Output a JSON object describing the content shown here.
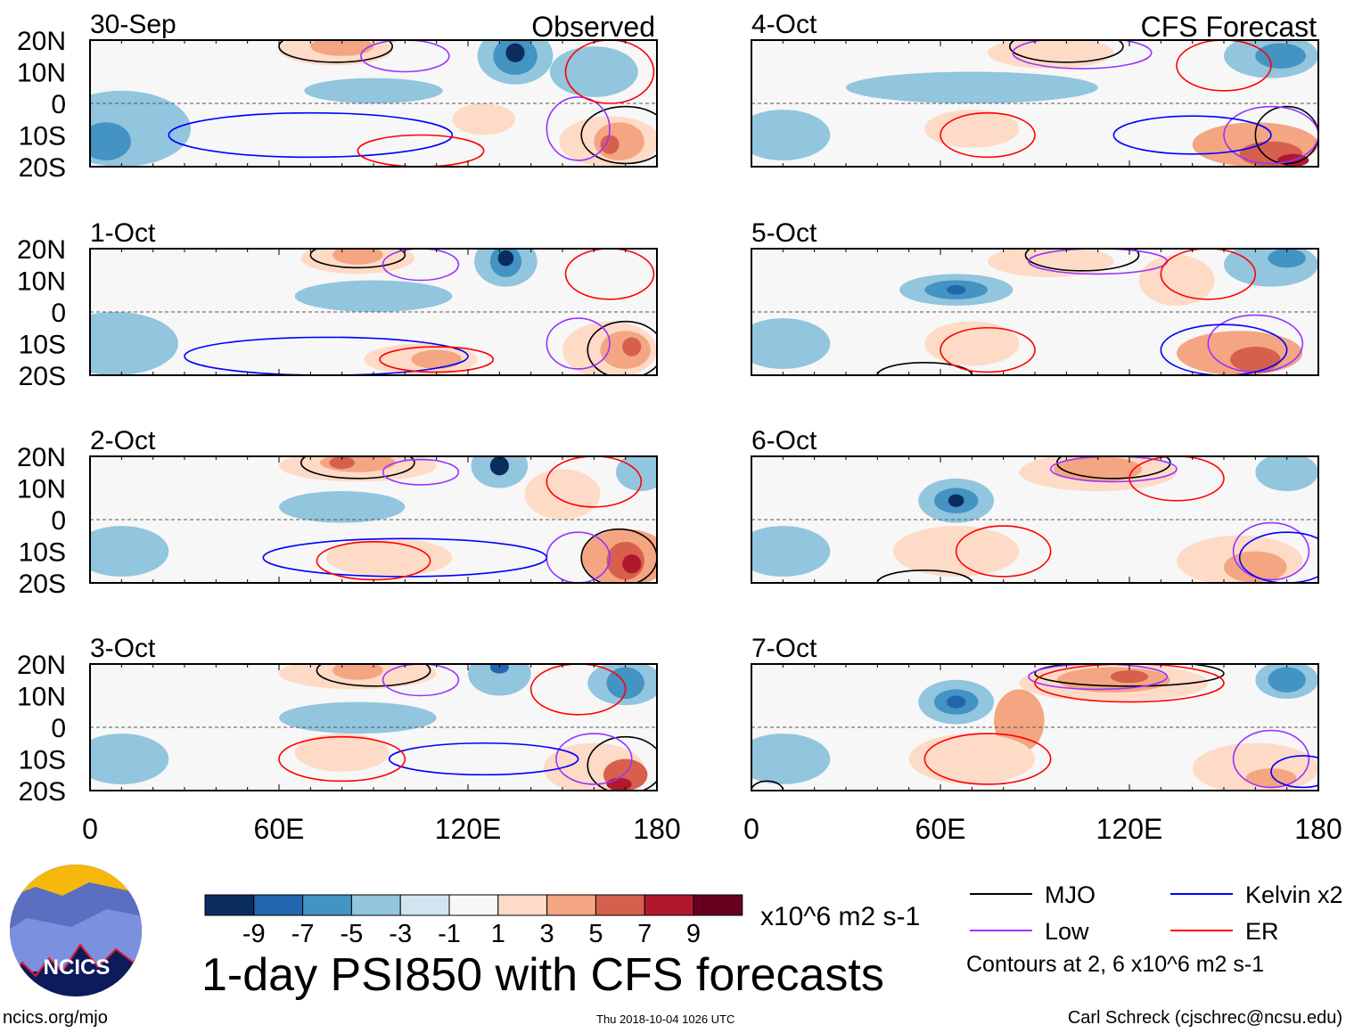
{
  "chart_data": {
    "type": "heatmap",
    "title": "1-day PSI850 with CFS forecasts",
    "units": "x10^6 m2 s-1",
    "columns": [
      "Observed",
      "CFS Forecast"
    ],
    "lon_range": [
      0,
      180
    ],
    "lat_range": [
      -20,
      20
    ],
    "lat_ticks": [
      "20N",
      "10N",
      "0",
      "10S",
      "20S"
    ],
    "lon_ticks": [
      "0",
      "60E",
      "120E",
      "180"
    ],
    "lon_tick_values": [
      0,
      60,
      120,
      180
    ],
    "levels": [
      -9,
      -7,
      -5,
      -3,
      -1,
      1,
      3,
      5,
      7,
      9
    ],
    "level_labels": [
      "-9",
      "-7",
      "-5",
      "-3",
      "-1",
      "1",
      "3",
      "5",
      "7",
      "9"
    ],
    "colors": [
      "#0b2d5e",
      "#2166ac",
      "#4393c3",
      "#92c5de",
      "#d1e5f0",
      "#f7f7f7",
      "#fddbc7",
      "#f4a582",
      "#d6604d",
      "#b2182b",
      "#67001f"
    ],
    "contour_colors": {
      "MJO": "#000000",
      "Low": "#9933ff",
      "Kelvin": "#0000ff",
      "ER": "#ff0000"
    },
    "panels": [
      {
        "date": "30-Sep",
        "col": 0,
        "row": 0,
        "anoms": [
          [
            10,
            -8,
            22,
            12,
            -3
          ],
          [
            5,
            -12,
            8,
            6,
            -5
          ],
          [
            90,
            4,
            22,
            4,
            -3
          ],
          [
            78,
            17,
            18,
            5,
            3
          ],
          [
            80,
            18,
            10,
            3,
            5
          ],
          [
            135,
            15,
            12,
            9,
            -3
          ],
          [
            135,
            15,
            7,
            6,
            -5
          ],
          [
            135,
            16,
            3,
            3,
            -9
          ],
          [
            125,
            -5,
            10,
            5,
            3
          ],
          [
            165,
            -12,
            16,
            8,
            3
          ],
          [
            168,
            -12,
            8,
            6,
            5
          ],
          [
            165,
            -13,
            3,
            3,
            7
          ],
          [
            160,
            10,
            14,
            8,
            -3
          ]
        ],
        "contours": [
          [
            "MJO",
            78,
            18,
            18,
            5
          ],
          [
            "MJO",
            170,
            -10,
            14,
            9
          ],
          [
            "Low",
            100,
            15,
            14,
            5
          ],
          [
            "Low",
            155,
            -8,
            10,
            10
          ],
          [
            "Kelvin",
            70,
            -10,
            45,
            7
          ],
          [
            "ER",
            105,
            -15,
            20,
            5
          ],
          [
            "ER",
            165,
            10,
            14,
            10
          ]
        ]
      },
      {
        "date": "1-Oct",
        "col": 0,
        "row": 1,
        "anoms": [
          [
            8,
            -10,
            20,
            10,
            -3
          ],
          [
            90,
            5,
            25,
            5,
            -3
          ],
          [
            85,
            17,
            18,
            5,
            3
          ],
          [
            85,
            18,
            8,
            3,
            5
          ],
          [
            132,
            16,
            10,
            8,
            -3
          ],
          [
            132,
            16,
            5,
            5,
            -5
          ],
          [
            132,
            17,
            2.5,
            2.5,
            -9
          ],
          [
            105,
            -15,
            18,
            5,
            3
          ],
          [
            110,
            -15,
            8,
            3,
            5
          ],
          [
            165,
            -12,
            15,
            9,
            3
          ],
          [
            170,
            -12,
            8,
            6,
            5
          ],
          [
            172,
            -11,
            3,
            3,
            7
          ]
        ],
        "contours": [
          [
            "MJO",
            85,
            18,
            15,
            4
          ],
          [
            "MJO",
            170,
            -12,
            12,
            9
          ],
          [
            "Low",
            105,
            15,
            12,
            5
          ],
          [
            "Low",
            155,
            -10,
            10,
            8
          ],
          [
            "Kelvin",
            75,
            -14,
            45,
            6
          ],
          [
            "ER",
            110,
            -15,
            18,
            4
          ],
          [
            "ER",
            165,
            12,
            14,
            8
          ]
        ]
      },
      {
        "date": "2-Oct",
        "col": 0,
        "row": 2,
        "anoms": [
          [
            10,
            -10,
            15,
            8,
            -3
          ],
          [
            80,
            4,
            20,
            5,
            -3
          ],
          [
            85,
            17,
            25,
            5,
            3
          ],
          [
            85,
            18,
            12,
            3,
            5
          ],
          [
            80,
            18,
            4,
            2,
            7
          ],
          [
            130,
            17,
            9,
            7,
            -3
          ],
          [
            130,
            17,
            3,
            3,
            -9
          ],
          [
            150,
            8,
            12,
            8,
            3
          ],
          [
            95,
            -12,
            20,
            6,
            3
          ],
          [
            170,
            -12,
            14,
            9,
            5
          ],
          [
            170,
            -13,
            6,
            6,
            7
          ],
          [
            172,
            -14,
            3,
            3,
            9
          ],
          [
            175,
            15,
            8,
            6,
            -3
          ]
        ],
        "contours": [
          [
            "MJO",
            85,
            18,
            18,
            5
          ],
          [
            "MJO",
            168,
            -12,
            12,
            9
          ],
          [
            "Low",
            105,
            15,
            12,
            4
          ],
          [
            "Low",
            155,
            -12,
            10,
            8
          ],
          [
            "Kelvin",
            100,
            -12,
            45,
            6
          ],
          [
            "ER",
            90,
            -13,
            18,
            6
          ],
          [
            "ER",
            160,
            12,
            15,
            8
          ]
        ]
      },
      {
        "date": "3-Oct",
        "col": 0,
        "row": 3,
        "anoms": [
          [
            10,
            -10,
            15,
            8,
            -3
          ],
          [
            85,
            3,
            25,
            5,
            -3
          ],
          [
            85,
            17,
            25,
            5,
            3
          ],
          [
            85,
            18,
            8,
            3,
            5
          ],
          [
            130,
            17,
            10,
            7,
            -3
          ],
          [
            130,
            19,
            3,
            2,
            -7
          ],
          [
            170,
            14,
            12,
            7,
            -3
          ],
          [
            170,
            14,
            6,
            5,
            -5
          ],
          [
            80,
            -8,
            15,
            6,
            3
          ],
          [
            160,
            -13,
            16,
            8,
            3
          ],
          [
            170,
            -15,
            7,
            5,
            7
          ],
          [
            168,
            -18,
            4,
            2,
            9
          ]
        ],
        "contours": [
          [
            "MJO",
            90,
            18,
            18,
            5
          ],
          [
            "MJO",
            170,
            -12,
            12,
            9
          ],
          [
            "Low",
            105,
            15,
            12,
            5
          ],
          [
            "Low",
            160,
            -10,
            12,
            8
          ],
          [
            "Kelvin",
            125,
            -10,
            30,
            5
          ],
          [
            "ER",
            80,
            -10,
            20,
            7
          ],
          [
            "ER",
            155,
            12,
            15,
            8
          ]
        ]
      },
      {
        "date": "4-Oct",
        "col": 1,
        "row": 0,
        "anoms": [
          [
            10,
            -10,
            15,
            8,
            -3
          ],
          [
            70,
            5,
            40,
            5,
            -3
          ],
          [
            95,
            16,
            20,
            5,
            3
          ],
          [
            165,
            15,
            15,
            7,
            -3
          ],
          [
            168,
            15,
            8,
            4,
            -5
          ],
          [
            70,
            -8,
            15,
            6,
            3
          ],
          [
            160,
            -13,
            20,
            7,
            5
          ],
          [
            165,
            -16,
            10,
            4,
            7
          ],
          [
            172,
            -18,
            5,
            2,
            9
          ]
        ],
        "contours": [
          [
            "MJO",
            100,
            18,
            18,
            5
          ],
          [
            "MJO",
            170,
            -10,
            10,
            9
          ],
          [
            "Low",
            105,
            16,
            22,
            5
          ],
          [
            "Low",
            165,
            -10,
            15,
            9
          ],
          [
            "Kelvin",
            140,
            -10,
            25,
            6
          ],
          [
            "ER",
            75,
            -10,
            15,
            7
          ],
          [
            "ER",
            150,
            12,
            15,
            8
          ]
        ]
      },
      {
        "date": "5-Oct",
        "col": 1,
        "row": 1,
        "anoms": [
          [
            10,
            -10,
            15,
            8,
            -3
          ],
          [
            65,
            7,
            18,
            5,
            -3
          ],
          [
            65,
            7,
            10,
            3,
            -5
          ],
          [
            65,
            7,
            3,
            1.5,
            -7
          ],
          [
            95,
            16,
            20,
            5,
            3
          ],
          [
            135,
            10,
            12,
            8,
            3
          ],
          [
            165,
            15,
            15,
            7,
            -3
          ],
          [
            170,
            17,
            6,
            3,
            -5
          ],
          [
            70,
            -10,
            15,
            7,
            3
          ],
          [
            155,
            -13,
            20,
            7,
            5
          ],
          [
            160,
            -15,
            8,
            4,
            7
          ]
        ],
        "contours": [
          [
            "MJO",
            105,
            18,
            18,
            5
          ],
          [
            "MJO",
            55,
            -20,
            15,
            4
          ],
          [
            "Low",
            110,
            16,
            22,
            4
          ],
          [
            "Low",
            160,
            -10,
            15,
            9
          ],
          [
            "Kelvin",
            150,
            -12,
            20,
            8
          ],
          [
            "ER",
            75,
            -12,
            15,
            7
          ],
          [
            "ER",
            145,
            12,
            15,
            8
          ]
        ]
      },
      {
        "date": "6-Oct",
        "col": 1,
        "row": 2,
        "anoms": [
          [
            10,
            -10,
            15,
            8,
            -3
          ],
          [
            65,
            6,
            12,
            7,
            -3
          ],
          [
            65,
            6,
            7,
            4,
            -5
          ],
          [
            65,
            6,
            2.5,
            2,
            -9
          ],
          [
            110,
            15,
            25,
            6,
            3
          ],
          [
            110,
            16,
            14,
            4,
            5
          ],
          [
            170,
            15,
            10,
            6,
            -3
          ],
          [
            65,
            -10,
            20,
            8,
            3
          ],
          [
            155,
            -13,
            20,
            8,
            3
          ],
          [
            160,
            -15,
            10,
            5,
            5
          ]
        ],
        "contours": [
          [
            "MJO",
            115,
            18,
            18,
            5
          ],
          [
            "MJO",
            55,
            -20,
            15,
            4
          ],
          [
            "Low",
            115,
            16,
            20,
            4
          ],
          [
            "Low",
            165,
            -10,
            12,
            9
          ],
          [
            "Kelvin",
            170,
            -12,
            15,
            8
          ],
          [
            "ER",
            80,
            -10,
            15,
            8
          ],
          [
            "ER",
            135,
            13,
            15,
            7
          ]
        ]
      },
      {
        "date": "7-Oct",
        "col": 1,
        "row": 3,
        "anoms": [
          [
            10,
            -10,
            15,
            8,
            -3
          ],
          [
            65,
            8,
            12,
            7,
            -3
          ],
          [
            65,
            8,
            7,
            4,
            -5
          ],
          [
            65,
            8,
            3,
            2,
            -7
          ],
          [
            115,
            14,
            30,
            6,
            3
          ],
          [
            115,
            15,
            18,
            4,
            5
          ],
          [
            120,
            16,
            6,
            2,
            7
          ],
          [
            85,
            2,
            8,
            10,
            5
          ],
          [
            170,
            15,
            10,
            6,
            -3
          ],
          [
            170,
            15,
            6,
            4,
            -5
          ],
          [
            70,
            -10,
            20,
            8,
            3
          ],
          [
            160,
            -13,
            20,
            8,
            3
          ],
          [
            165,
            -16,
            8,
            3,
            5
          ]
        ],
        "contours": [
          [
            "MJO",
            120,
            17,
            30,
            4
          ],
          [
            "MJO",
            5,
            -20,
            5,
            3
          ],
          [
            "Low",
            110,
            16,
            22,
            4
          ],
          [
            "Low",
            165,
            -10,
            12,
            9
          ],
          [
            "Kelvin",
            175,
            -14,
            10,
            5
          ],
          [
            "ER",
            75,
            -10,
            20,
            8
          ],
          [
            "ER",
            120,
            14,
            30,
            6
          ]
        ]
      }
    ]
  },
  "legend": {
    "items": [
      {
        "key": "MJO",
        "label": "MJO"
      },
      {
        "key": "Kelvin",
        "label": "Kelvin x2"
      },
      {
        "key": "Low",
        "label": "Low"
      },
      {
        "key": "ER",
        "label": "ER"
      }
    ],
    "contour_note": "Contours at 2, 6 x10^6 m2 s-1",
    "units": "x10^6 m2 s-1"
  },
  "logo": {
    "text": "NCICS"
  },
  "footer": {
    "url": "ncics.org/mjo",
    "timestamp": "Thu 2018-10-04 1026 UTC",
    "author": "Carl Schreck (cjschrec@ncsu.edu)"
  }
}
